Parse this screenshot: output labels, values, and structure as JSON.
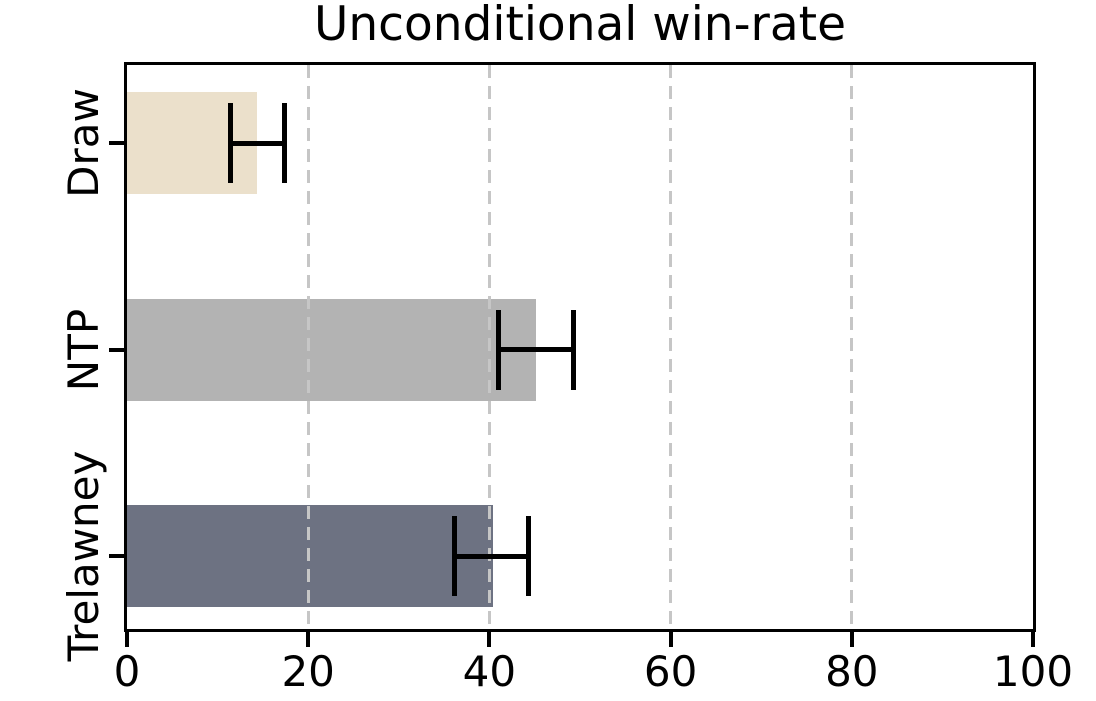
{
  "chart_data": {
    "type": "bar",
    "orientation": "horizontal",
    "title": "Unconditional win-rate",
    "categories": [
      "Draw",
      "NTP",
      "Trelawney"
    ],
    "values": [
      14.3,
      45.1,
      40.4
    ],
    "error_low": [
      11.4,
      41.0,
      36.1
    ],
    "error_high": [
      17.4,
      49.3,
      44.3
    ],
    "bar_colors": [
      "#ebe0cb",
      "#b3b3b3",
      "#6d7282"
    ],
    "xlabel": "",
    "ylabel": "",
    "xlim": [
      0,
      100
    ],
    "xticks": [
      0,
      20,
      40,
      60,
      80,
      100
    ],
    "gridlines": [
      20,
      40,
      60,
      80
    ],
    "grid_on": true,
    "grid_style": "dashed",
    "grid_color": "#c6c6c6",
    "axis_color": "#000000",
    "error_bar_color": "#000000",
    "background_color": "#ffffff",
    "legend_position": "none"
  }
}
